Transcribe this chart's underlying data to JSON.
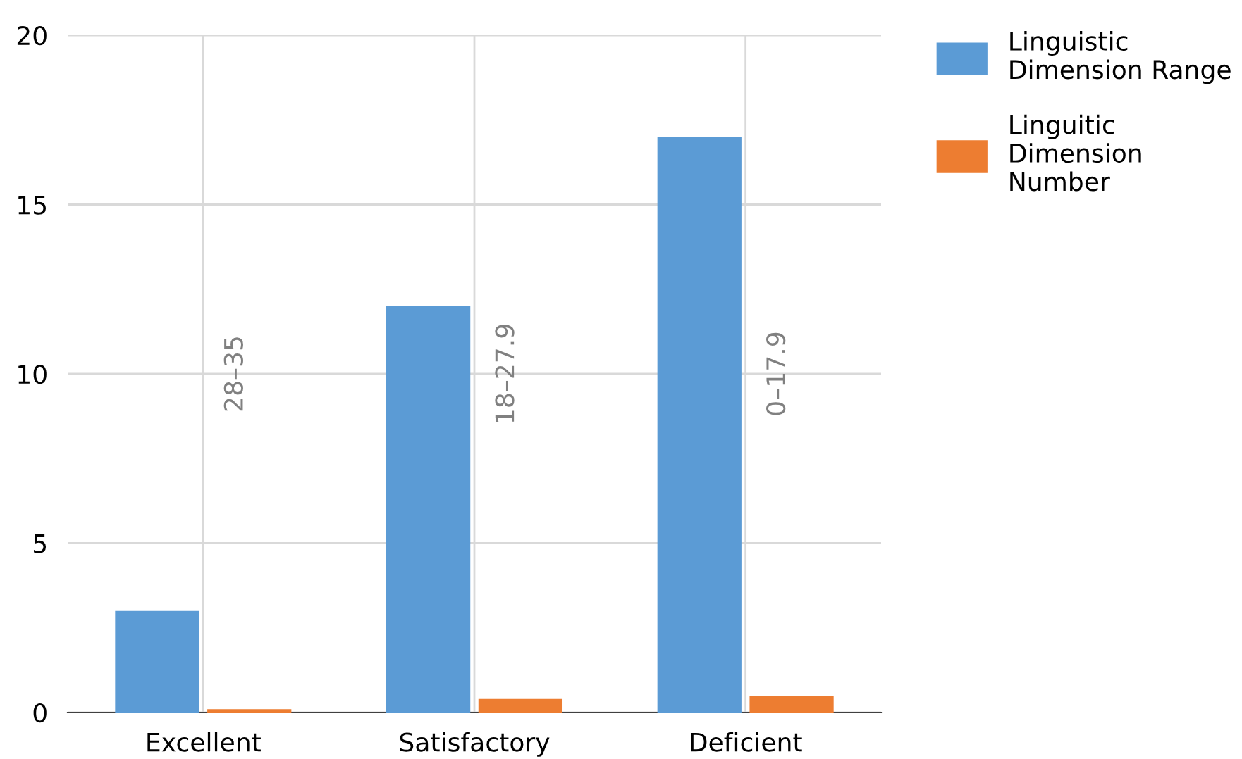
{
  "chart_data": {
    "type": "bar",
    "categories": [
      "Excellent",
      "Satisfactory",
      "Deficient"
    ],
    "series": [
      {
        "name": "Linguistic\nDimension Range",
        "color": "#5b9bd5",
        "values": [
          3,
          12,
          17
        ]
      },
      {
        "name": "Linguitic\nDimension\nNumber",
        "color": "#ed7d31",
        "values": [
          0.1,
          0.4,
          0.5
        ]
      }
    ],
    "annotations": [
      "28–35",
      "18–27.9",
      "0–17.9"
    ],
    "ylim": [
      0,
      20
    ],
    "yticks": [
      0,
      5,
      10,
      15,
      20
    ],
    "grid": true,
    "legend": "top right"
  }
}
